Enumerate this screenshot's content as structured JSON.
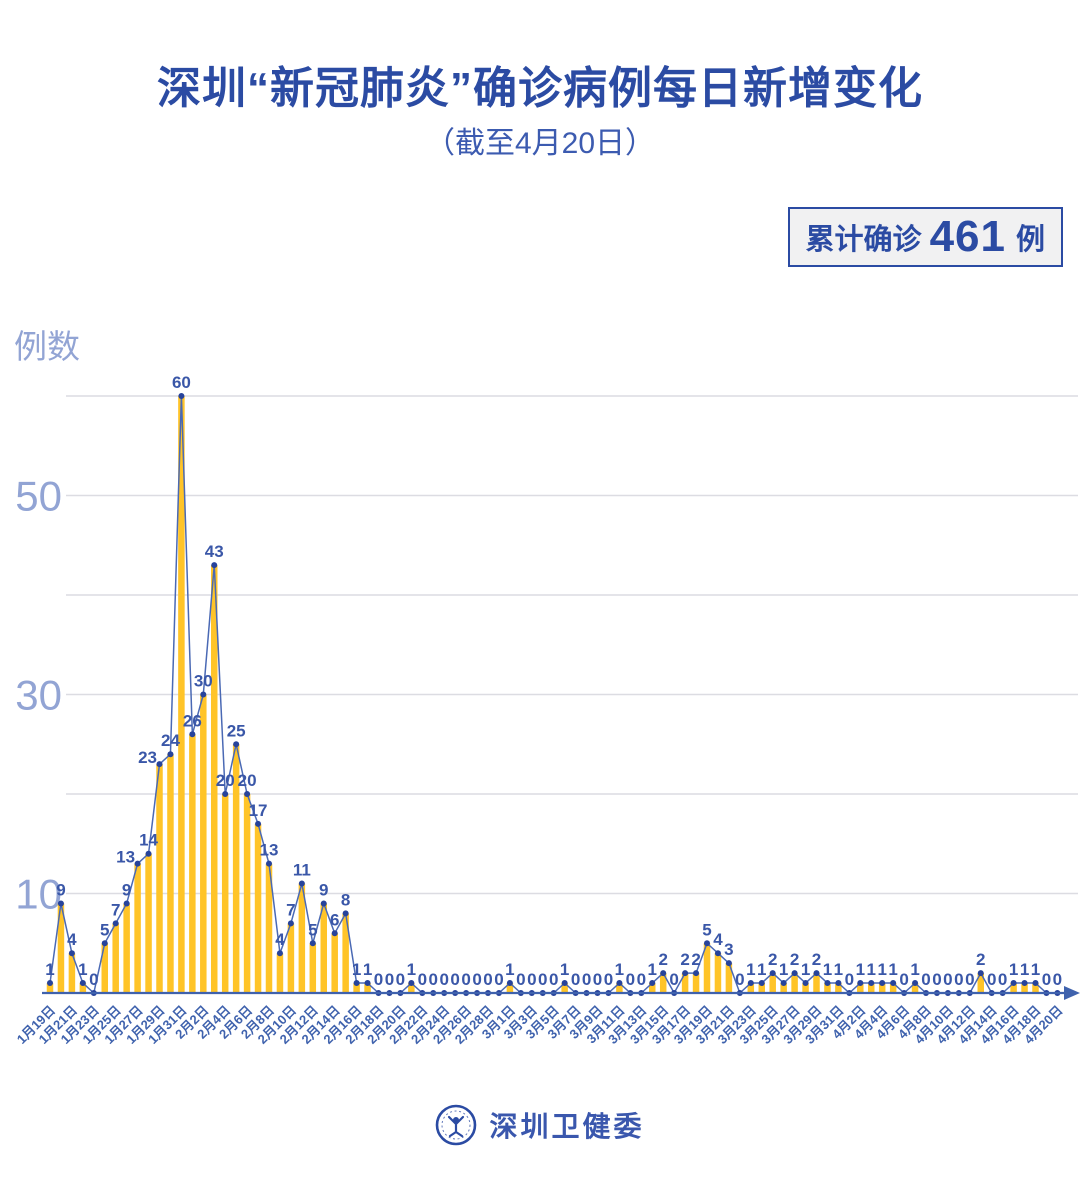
{
  "title": "深圳“新冠肺炎”确诊病例每日新增变化",
  "subtitle": "（截至4月20日）",
  "badge": {
    "prefix": "累计确诊",
    "value": "461",
    "suffix": "例"
  },
  "footer": {
    "org": "深圳卫健委",
    "logo_icon": "shenzhen-health-commission-emblem"
  },
  "chart_data": {
    "type": "bar",
    "line_overlay": true,
    "title": "深圳新冠肺炎确诊病例每日新增变化",
    "xlabel": "",
    "ylabel": "例数",
    "ylim": [
      0,
      62
    ],
    "yticks": [
      10,
      30,
      50
    ],
    "gridlines": [
      10,
      20,
      30,
      40,
      50,
      60
    ],
    "grid": true,
    "legend": "none",
    "x_tick_every": 2,
    "bar_color": "#FFC428",
    "line_color": "#4A69B4",
    "point_color": "#27439B",
    "value_label_color": "#3A57A8",
    "axis_color": "#3F62AD",
    "grid_color": "#DCDCE2",
    "ytick_color": "#92A4D4",
    "categories": [
      "1月19日",
      "1月20日",
      "1月21日",
      "1月22日",
      "1月23日",
      "1月24日",
      "1月25日",
      "1月26日",
      "1月27日",
      "1月28日",
      "1月29日",
      "1月30日",
      "1月31日",
      "2月1日",
      "2月2日",
      "2月3日",
      "2月4日",
      "2月5日",
      "2月6日",
      "2月7日",
      "2月8日",
      "2月9日",
      "2月10日",
      "2月11日",
      "2月12日",
      "2月13日",
      "2月14日",
      "2月15日",
      "2月16日",
      "2月17日",
      "2月18日",
      "2月19日",
      "2月20日",
      "2月21日",
      "2月22日",
      "2月23日",
      "2月24日",
      "2月25日",
      "2月26日",
      "2月27日",
      "2月28日",
      "2月29日",
      "3月1日",
      "3月2日",
      "3月3日",
      "3月4日",
      "3月5日",
      "3月6日",
      "3月7日",
      "3月8日",
      "3月9日",
      "3月10日",
      "3月11日",
      "3月12日",
      "3月13日",
      "3月14日",
      "3月15日",
      "3月16日",
      "3月17日",
      "3月18日",
      "3月19日",
      "3月20日",
      "3月21日",
      "3月22日",
      "3月23日",
      "3月24日",
      "3月25日",
      "3月26日",
      "3月27日",
      "3月28日",
      "3月29日",
      "3月30日",
      "3月31日",
      "4月1日",
      "4月2日",
      "4月3日",
      "4月4日",
      "4月5日",
      "4月6日",
      "4月7日",
      "4月8日",
      "4月9日",
      "4月10日",
      "4月11日",
      "4月12日",
      "4月13日",
      "4月14日",
      "4月15日",
      "4月16日",
      "4月17日",
      "4月18日",
      "4月19日",
      "4月20日"
    ],
    "values": [
      1,
      9,
      4,
      1,
      0,
      5,
      7,
      9,
      13,
      14,
      23,
      24,
      60,
      26,
      30,
      43,
      20,
      25,
      20,
      17,
      13,
      4,
      7,
      11,
      5,
      9,
      6,
      8,
      1,
      1,
      0,
      0,
      0,
      1,
      0,
      0,
      0,
      0,
      0,
      0,
      0,
      0,
      1,
      0,
      0,
      0,
      0,
      1,
      0,
      0,
      0,
      0,
      1,
      0,
      0,
      1,
      2,
      0,
      2,
      2,
      5,
      4,
      3,
      0,
      1,
      1,
      2,
      1,
      2,
      1,
      2,
      1,
      1,
      0,
      1,
      1,
      1,
      1,
      0,
      1,
      0,
      0,
      0,
      0,
      0,
      2,
      0,
      0,
      1,
      1,
      1,
      0,
      0
    ],
    "total": 461
  }
}
